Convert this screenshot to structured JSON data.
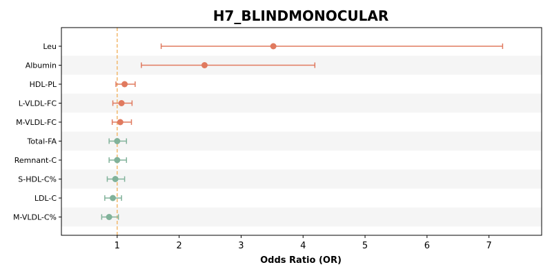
{
  "chart_data": {
    "type": "forest",
    "title": "H7_BLINDMONOCULAR",
    "xlabel": "Odds Ratio (OR)",
    "ylabel": "",
    "xlim": [
      0.1,
      7.85
    ],
    "xticks": [
      1,
      2,
      3,
      4,
      5,
      6,
      7
    ],
    "reference_line": 1,
    "colors": {
      "risk": "#e07a5f",
      "protective": "#81b29a",
      "reference": "#f2b86b",
      "band": "#f5f5f5"
    },
    "grid": false,
    "categories": [
      "Leu",
      "Albumin",
      "HDL-PL",
      "L-VLDL-FC",
      "M-VLDL-FC",
      "Total-FA",
      "Remnant-C",
      "S-HDL-C%",
      "LDL-C",
      "M-VLDL-C%"
    ],
    "estimates": [
      3.52,
      2.41,
      1.12,
      1.07,
      1.05,
      1.0,
      1.0,
      0.97,
      0.93,
      0.87
    ],
    "ci_lower": [
      1.71,
      1.39,
      0.98,
      0.93,
      0.92,
      0.87,
      0.87,
      0.84,
      0.8,
      0.75
    ],
    "ci_upper": [
      7.22,
      4.19,
      1.29,
      1.24,
      1.23,
      1.15,
      1.15,
      1.12,
      1.07,
      1.02
    ],
    "groups": [
      "risk",
      "risk",
      "risk",
      "risk",
      "risk",
      "protective",
      "protective",
      "protective",
      "protective",
      "protective"
    ]
  }
}
